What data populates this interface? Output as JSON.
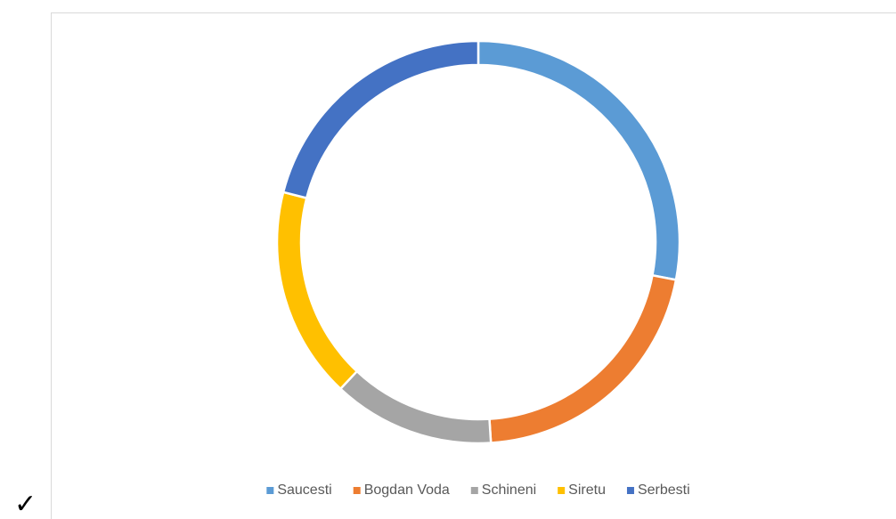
{
  "chart_data": {
    "type": "donut",
    "categories": [
      "Saucesti",
      "Bogdan Voda",
      "Schineni",
      "Siretu",
      "Serbesti"
    ],
    "values": [
      28,
      21,
      13,
      17,
      21
    ],
    "colors": [
      "#5b9bd5",
      "#ed7d31",
      "#a5a5a5",
      "#ffc000",
      "#4472c4"
    ],
    "legend": "bottom"
  },
  "bullet": "✓"
}
